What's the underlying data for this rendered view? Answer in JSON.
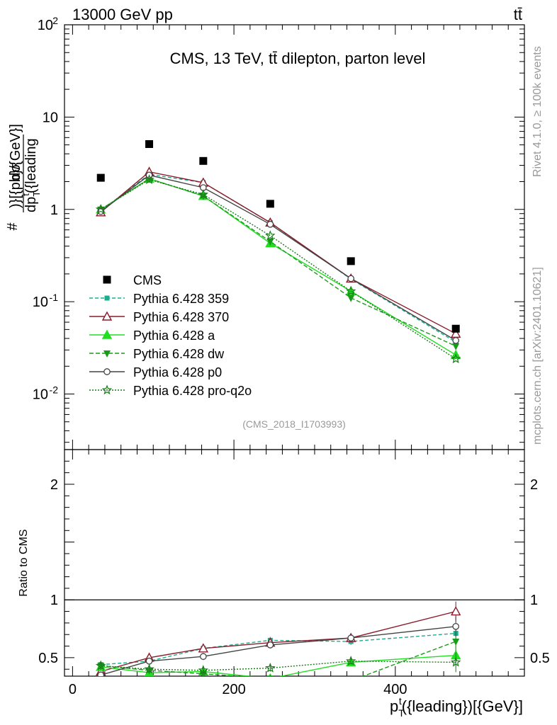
{
  "header": {
    "beam": "13000 GeV pp",
    "process": "tt̄"
  },
  "side_labels": {
    "rivet": "Rivet 4.1.0, ≥ 100k events",
    "source": "mcplots.cern.ch [arXiv:2401.10621]"
  },
  "chart_data": {
    "type": "line",
    "title": "CMS, 13 TeV, tt̄ dilepton, parton level",
    "analysis_tag": "(CMS_2018_I1703993)",
    "xlabel_main": "p",
    "xlabel_sub": "T",
    "xlabel_sup": "t",
    "xlabel_tail": "({leading})[{GeV}]",
    "ylabel_main": "#",
    "ylabel_num": "dσ",
    "ylabel_den": "dp",
    "ylabel_den_sub": "T",
    "ylabel_den_sup": "t",
    "ylabel_den_tail": "({leading",
    "ylabel_tail": ")}[{pb}/{GeV}]",
    "ratio_ylabel": "Ratio to CMS",
    "xlim": [
      -10,
      560
    ],
    "main_ylim": [
      0.0025,
      100
    ],
    "ratio_ylim": [
      0.34,
      2.3
    ],
    "x_ticks": [
      0,
      200,
      400
    ],
    "x_tick_labels": [
      "0",
      "200",
      "400"
    ],
    "main_y_ticks": [
      0.01,
      0.1,
      1,
      10,
      100
    ],
    "main_y_tick_labels": [
      "10",
      "10",
      "1",
      "10",
      "10"
    ],
    "main_y_tick_exps": [
      "-2",
      "-1",
      "",
      "",
      "2"
    ],
    "ratio_y_ticks": [
      0.5,
      1,
      2
    ],
    "ratio_y_tick_labels": [
      "0.5",
      "1",
      "2"
    ],
    "data": {
      "name": "CMS",
      "x": [
        35,
        95,
        162,
        245,
        345,
        475
      ],
      "y": [
        2.2,
        5.1,
        3.35,
        1.15,
        0.275,
        0.051
      ]
    },
    "series": [
      {
        "name": "Pythia 6.428 359",
        "color": "#1aae8e",
        "dash": "5,3",
        "marker": "square",
        "x": [
          35,
          95,
          162,
          245,
          345,
          475
        ],
        "y": [
          0.97,
          2.4,
          1.95,
          0.72,
          0.176,
          0.0365
        ],
        "ratio": [
          0.44,
          0.47,
          0.58,
          0.65,
          0.64,
          0.71
        ]
      },
      {
        "name": "Pythia 6.428 370",
        "color": "#8b1a2b",
        "dash": "",
        "marker": "triangle-open",
        "x": [
          35,
          95,
          162,
          245,
          345,
          475
        ],
        "y": [
          0.93,
          2.55,
          1.95,
          0.72,
          0.178,
          0.045
        ],
        "ratio": [
          0.38,
          0.5,
          0.58,
          0.63,
          0.67,
          0.9
        ]
      },
      {
        "name": "Pythia 6.428 a",
        "color": "#22dd22",
        "dash": "",
        "marker": "triangle",
        "x": [
          35,
          95,
          162,
          245,
          345,
          475
        ],
        "y": [
          1.0,
          2.15,
          1.4,
          0.43,
          0.13,
          0.0265
        ],
        "ratio": [
          0.42,
          0.37,
          0.38,
          0.32,
          0.46,
          0.52
        ]
      },
      {
        "name": "Pythia 6.428 dw",
        "color": "#1a9a1a",
        "dash": "6,3",
        "marker": "triangle-down",
        "x": [
          35,
          95,
          162,
          245,
          345,
          475
        ],
        "y": [
          1.0,
          2.15,
          1.4,
          0.45,
          0.11,
          0.033
        ],
        "ratio": [
          0.43,
          0.39,
          0.36,
          0.32,
          0.3,
          0.64
        ]
      },
      {
        "name": "Pythia 6.428 p0",
        "color": "#444444",
        "dash": "",
        "marker": "circle-open",
        "x": [
          35,
          95,
          162,
          245,
          345,
          475
        ],
        "y": [
          0.95,
          2.35,
          1.72,
          0.69,
          0.178,
          0.038
        ],
        "ratio": [
          0.35,
          0.47,
          0.51,
          0.61,
          0.67,
          0.77
        ]
      },
      {
        "name": "Pythia 6.428 pro-q2o",
        "color": "#1a7a1a",
        "dash": "2,2",
        "marker": "star",
        "x": [
          35,
          95,
          162,
          245,
          345,
          475
        ],
        "y": [
          1.0,
          2.1,
          1.45,
          0.52,
          0.13,
          0.024
        ],
        "ratio": [
          0.43,
          0.4,
          0.39,
          0.41,
          0.47,
          0.46
        ]
      }
    ]
  }
}
